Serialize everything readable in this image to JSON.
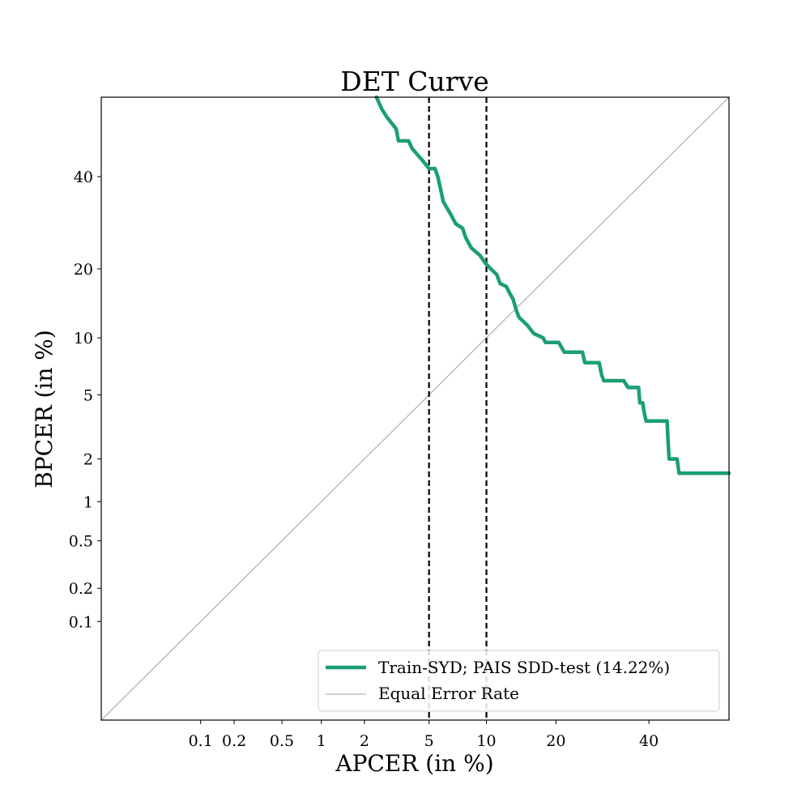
{
  "chart_data": {
    "type": "line",
    "title": "DET Curve",
    "xlabel": "APCER (in %)",
    "ylabel": "BPCER (in %)",
    "scale": "probit",
    "xlim": [
      0.01,
      60
    ],
    "ylim": [
      0.01,
      60
    ],
    "x_ticks": [
      {
        "value": 0.1,
        "label": "0.1"
      },
      {
        "value": 0.2,
        "label": "0.2"
      },
      {
        "value": 0.5,
        "label": "0.5"
      },
      {
        "value": 1,
        "label": "1"
      },
      {
        "value": 2,
        "label": "2"
      },
      {
        "value": 5,
        "label": "5"
      },
      {
        "value": 10,
        "label": "10"
      },
      {
        "value": 20,
        "label": "20"
      },
      {
        "value": 40,
        "label": "40"
      }
    ],
    "y_ticks": [
      {
        "value": 0.1,
        "label": "0.1"
      },
      {
        "value": 0.2,
        "label": "0.2"
      },
      {
        "value": 0.5,
        "label": "0.5"
      },
      {
        "value": 1,
        "label": "1"
      },
      {
        "value": 2,
        "label": "2"
      },
      {
        "value": 5,
        "label": "5"
      },
      {
        "value": 10,
        "label": "10"
      },
      {
        "value": 20,
        "label": "20"
      },
      {
        "value": 40,
        "label": "40"
      }
    ],
    "vertical_lines": [
      {
        "x": 5,
        "style": "dashed",
        "color": "#000000"
      },
      {
        "x": 10,
        "style": "dashed",
        "color": "#000000"
      }
    ],
    "series": [
      {
        "name": "Train-SYD; PAIS SDD-test (14.22%)",
        "color": "#1b9e77",
        "points": [
          [
            2.4,
            60
          ],
          [
            2.6,
            57
          ],
          [
            2.8,
            55
          ],
          [
            3.2,
            52
          ],
          [
            3.3,
            49
          ],
          [
            3.8,
            49
          ],
          [
            4.0,
            47
          ],
          [
            4.6,
            44
          ],
          [
            5.0,
            42
          ],
          [
            5.4,
            42
          ],
          [
            5.6,
            40
          ],
          [
            5.8,
            37
          ],
          [
            6.0,
            34
          ],
          [
            6.6,
            31
          ],
          [
            7.0,
            29
          ],
          [
            7.6,
            28
          ],
          [
            7.9,
            26
          ],
          [
            8.4,
            24
          ],
          [
            9.3,
            22.5
          ],
          [
            9.9,
            21
          ],
          [
            10.5,
            20
          ],
          [
            11.2,
            19
          ],
          [
            11.6,
            17.5
          ],
          [
            12.4,
            17
          ],
          [
            12.8,
            16
          ],
          [
            13.3,
            15
          ],
          [
            13.7,
            13.5
          ],
          [
            14.1,
            12.5
          ],
          [
            15.3,
            11.5
          ],
          [
            16.3,
            10.5
          ],
          [
            17.8,
            10
          ],
          [
            18.2,
            9.5
          ],
          [
            20.5,
            9.5
          ],
          [
            21.5,
            8.5
          ],
          [
            25,
            8.5
          ],
          [
            25.5,
            7.5
          ],
          [
            28.5,
            7.5
          ],
          [
            29,
            6.5
          ],
          [
            29.5,
            6
          ],
          [
            34,
            6
          ],
          [
            35,
            5.5
          ],
          [
            37.5,
            5.5
          ],
          [
            37.8,
            4.5
          ],
          [
            38.5,
            4.5
          ],
          [
            38.8,
            4
          ],
          [
            39.3,
            3.5
          ],
          [
            44.5,
            3.5
          ],
          [
            44.7,
            2.7
          ],
          [
            45,
            2
          ],
          [
            47,
            2
          ],
          [
            47.5,
            1.6
          ],
          [
            60,
            1.6
          ]
        ]
      },
      {
        "name": "Equal Error Rate",
        "color": "#a0a0a0",
        "points": [
          [
            0.01,
            0.01
          ],
          [
            60,
            60
          ]
        ]
      }
    ],
    "legend": {
      "position": "lower-right",
      "entries": [
        "Train-SYD; PAIS SDD-test (14.22%)",
        "Equal Error Rate"
      ]
    }
  }
}
